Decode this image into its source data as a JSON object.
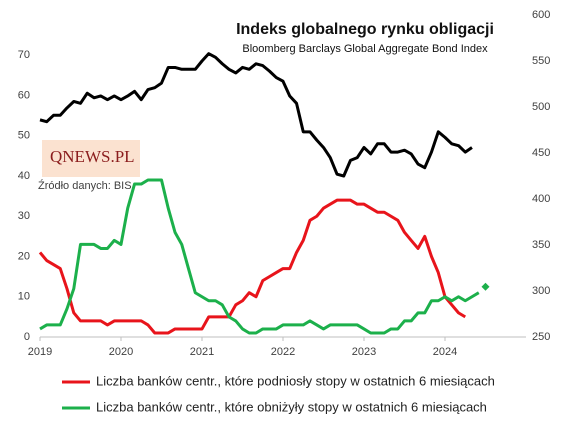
{
  "chart_data": {
    "type": "line",
    "title": "Indeks globalnego rynku obligacji",
    "subtitle": "Bloomberg Barclays Global Aggregate Bond Index",
    "logo": "QNEWS.PL",
    "source": "Źródło danych: BIS",
    "x": [
      2019,
      2019.083,
      2019.167,
      2019.25,
      2019.333,
      2019.417,
      2019.5,
      2019.583,
      2019.667,
      2019.75,
      2019.833,
      2019.917,
      2020,
      2020.083,
      2020.167,
      2020.25,
      2020.333,
      2020.417,
      2020.5,
      2020.583,
      2020.667,
      2020.75,
      2020.833,
      2020.917,
      2021,
      2021.083,
      2021.167,
      2021.25,
      2021.333,
      2021.417,
      2021.5,
      2021.583,
      2021.667,
      2021.75,
      2021.833,
      2021.917,
      2022,
      2022.083,
      2022.167,
      2022.25,
      2022.333,
      2022.417,
      2022.5,
      2022.583,
      2022.667,
      2022.75,
      2022.833,
      2022.917,
      2023,
      2023.083,
      2023.167,
      2023.25,
      2023.333,
      2023.417,
      2023.5,
      2023.583,
      2023.667,
      2023.75,
      2023.833,
      2023.917,
      2024,
      2024.083,
      2024.167,
      2024.25,
      2024.333,
      2024.417
    ],
    "series": [
      {
        "name": "Bloomberg Barclays Global Aggregate Bond Index",
        "color": "#000000",
        "axis": "y2",
        "legend": false,
        "values": [
          486,
          484,
          491,
          491,
          499,
          506,
          504,
          515,
          510,
          512,
          508,
          512,
          508,
          512,
          517,
          508,
          519,
          521,
          526,
          543,
          543,
          541,
          541,
          541,
          550,
          558,
          554,
          547,
          541,
          537,
          543,
          541,
          547,
          545,
          539,
          532,
          528,
          512,
          504,
          473,
          473,
          464,
          456,
          445,
          427,
          425,
          442,
          445,
          456,
          449,
          460,
          460,
          451,
          451,
          453,
          449,
          438,
          434,
          451,
          473,
          467,
          460,
          458,
          451,
          456,
          null
        ]
      },
      {
        "name": "Liczba banków centr., które podniosły stopy w ostatnich 6 miesiącach",
        "color": "#e8141b",
        "values": [
          21,
          19,
          18,
          17,
          12,
          6,
          4,
          4,
          4,
          4,
          3,
          4,
          4,
          4,
          4,
          4,
          3,
          1,
          1,
          1,
          2,
          2,
          2,
          2,
          2,
          5,
          5,
          5,
          5,
          8,
          9,
          11,
          10,
          14,
          15,
          16,
          17,
          17,
          21,
          24,
          29,
          30,
          32,
          33,
          34,
          34,
          34,
          33,
          33,
          32,
          31,
          31,
          30,
          29,
          26,
          24,
          22,
          25,
          20,
          16,
          10,
          8,
          6,
          5,
          null,
          null
        ]
      },
      {
        "name": "Liczba banków centr., które obniżyły stopy w ostatnich 6 miesiącach",
        "color": "#1cb04b",
        "values": [
          2,
          3,
          3,
          3,
          7,
          12,
          23,
          23,
          23,
          22,
          22,
          24,
          23,
          32,
          38,
          38,
          39,
          39,
          39,
          32,
          26,
          23,
          17,
          11,
          10,
          9,
          9,
          8,
          5,
          4,
          2,
          1,
          1,
          2,
          2,
          2,
          3,
          3,
          3,
          3,
          4,
          3,
          2,
          3,
          3,
          3,
          3,
          3,
          2,
          1,
          1,
          1,
          2,
          2,
          4,
          4,
          6,
          6,
          9,
          9,
          10,
          9,
          10,
          9,
          10,
          11
        ]
      }
    ],
    "marker": {
      "x": 2024.5,
      "value": 12.5,
      "color": "#1cb04b"
    },
    "xlim": [
      2019,
      2025
    ],
    "xticks": [
      2019,
      2020,
      2021,
      2022,
      2023,
      2024
    ],
    "ylim": [
      0,
      80
    ],
    "yticks": [
      0,
      10,
      20,
      30,
      40,
      50,
      60,
      70
    ],
    "y2lim": [
      250,
      600
    ],
    "y2ticks": [
      250,
      300,
      350,
      400,
      450,
      500,
      550,
      600
    ],
    "grid": false
  }
}
